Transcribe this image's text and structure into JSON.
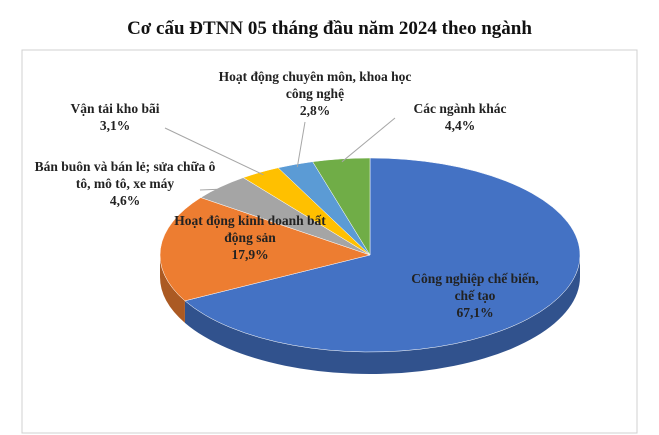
{
  "chart_data": {
    "type": "pie",
    "title": "Cơ cấu ĐTNN 05 tháng đầu năm 2024 theo ngành",
    "categories": [
      "Công nghiệp chế biến, chế tạo",
      "Hoạt động kinh doanh bất động sản",
      "Bán buôn và bán lẻ; sửa chữa ô tô, mô tô, xe máy",
      "Vận tải kho bãi",
      "Hoạt động chuyên môn, khoa học công nghệ",
      "Các ngành khác"
    ],
    "values": [
      67.1,
      17.9,
      4.6,
      3.1,
      2.8,
      4.4
    ],
    "value_labels": [
      "67,1%",
      "17,9%",
      "4,6%",
      "3,1%",
      "2,8%",
      "4,4%"
    ],
    "colors": [
      "#4472c4",
      "#ed7d31",
      "#a5a5a5",
      "#ffc000",
      "#5b9bd5",
      "#70ad47"
    ]
  }
}
